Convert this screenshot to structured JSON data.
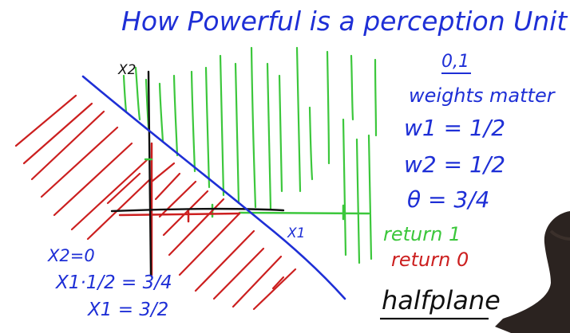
{
  "title": "How Powerful is a perception Unit?",
  "axes": {
    "x_label": "X1",
    "y_label": "X2"
  },
  "notes": {
    "inputs": "0,1",
    "weights_matter": "weights matter",
    "w1": "w1 = 1/2",
    "w2": "w2 = 1/2",
    "theta": "θ = 3/4",
    "return_1": "return 1",
    "return_0": "return 0",
    "halfplane": "halfplane"
  },
  "calc": {
    "line1": "X2=0",
    "line2": "X1·1/2 = 3/4",
    "line3": "X1 = 3/2"
  },
  "colors": {
    "blue": "#1e2fd6",
    "green": "#3cc73c",
    "red": "#cc1f1f",
    "black": "#111111"
  }
}
